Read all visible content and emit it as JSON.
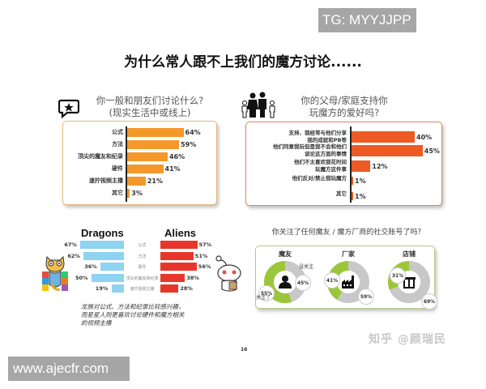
{
  "watermarks": {
    "top": "TG: MYYJJPP",
    "bottom": "www.ajecfr.com",
    "zhihu": "知乎 @颜瑞民"
  },
  "main_title": "为什么常人跟不上我们的魔方讨论......",
  "page_number": "16",
  "colors": {
    "orange": "#f4982a",
    "red_orange": "#ee5a24",
    "blue": "#8ed3f0",
    "red": "#e8362a",
    "green": "#9cc63a",
    "gray": "#c8c8c8"
  },
  "chart_data": [
    {
      "type": "bar",
      "orientation": "horizontal",
      "title": "你一般和朋友们讨论什么？（现实生活中或线上）",
      "categories": [
        "公式",
        "方法",
        "顶尖的魔友和纪录",
        "硬件",
        "速拧视频主播",
        "其它"
      ],
      "values": [
        64,
        59,
        46,
        41,
        21,
        3
      ],
      "value_labels": [
        "64%",
        "59%",
        "46%",
        "41%",
        "21%",
        "3%"
      ],
      "unit": "%",
      "color": "#f4982a"
    },
    {
      "type": "bar",
      "orientation": "horizontal",
      "title": "你的父母/家庭支持你玩魔方的爱好吗？",
      "categories": [
        "支持，我经常与他们分享我的成就和PB等",
        "他们同意我玩但是我不会和他们谈论这方面的事情",
        "他们不太喜欢我花时间玩魔方这件事",
        "他们反对/禁止我玩魔方",
        "其它"
      ],
      "category_lines": [
        [
          "支持，我经常与他们分享",
          "我的成就和PB等"
        ],
        [
          "他们同意我玩但是我不会和他们",
          "谈论这方面的事情"
        ],
        [
          "他们不太喜欢我花时间",
          "玩魔方这件事"
        ],
        [
          "他们反对/禁止我玩魔方"
        ],
        [
          "其它"
        ]
      ],
      "values": [
        40,
        45,
        12,
        1,
        1
      ],
      "value_labels": [
        "40%",
        "45%",
        "12%",
        "1%",
        "1%"
      ],
      "unit": "%",
      "color": "#ee5a24"
    },
    {
      "type": "bar",
      "orientation": "butterfly",
      "title": "Dragons vs Aliens",
      "categories": [
        "公式",
        "方法",
        "硬件",
        "顶尖的魔友和纪录",
        "速拧视频主播"
      ],
      "series": [
        {
          "name": "Dragons",
          "values": [
            67,
            62,
            36,
            50,
            19
          ],
          "value_labels": [
            "67%",
            "62%",
            "36%",
            "50%",
            "19%"
          ],
          "color": "#8ed3f0"
        },
        {
          "name": "Aliens",
          "values": [
            57,
            51,
            56,
            38,
            28
          ],
          "value_labels": [
            "57%",
            "51%",
            "56%",
            "38%",
            "28%"
          ],
          "color": "#e8362a"
        }
      ],
      "note": [
        "龙族对公式、方法和纪录比较感兴趣，",
        "而星星人则更喜欢讨论硬件和魔方相关",
        "的视频主播"
      ]
    },
    {
      "type": "pie",
      "subtype": "donut",
      "title": "你关注了任何魔友 / 魔方厂商的社交账号了吗？",
      "charts": [
        {
          "name": "魔友",
          "icon": "person-icon",
          "slices": [
            {
              "label": "关注了",
              "value": 55,
              "color": "#9cc63a"
            },
            {
              "label": "没关注",
              "value": 45,
              "color": "#c8c8c8"
            }
          ],
          "value_labels": [
            "55%",
            "45%"
          ]
        },
        {
          "name": "厂家",
          "icon": "factory-icon",
          "slices": [
            {
              "label": "关注了",
              "value": 41,
              "color": "#9cc63a"
            },
            {
              "label": "没关注",
              "value": 59,
              "color": "#c8c8c8"
            }
          ],
          "value_labels": [
            "41%",
            "59%"
          ]
        },
        {
          "name": "店铺",
          "icon": "store-icon",
          "slices": [
            {
              "label": "关注了",
              "value": 31,
              "color": "#9cc63a"
            },
            {
              "label": "没关注",
              "value": 69,
              "color": "#c8c8c8"
            }
          ],
          "value_labels": [
            "31%",
            "69%"
          ]
        }
      ],
      "legend_labels": {
        "followed": "关注了",
        "not_followed": "没关注"
      }
    }
  ]
}
